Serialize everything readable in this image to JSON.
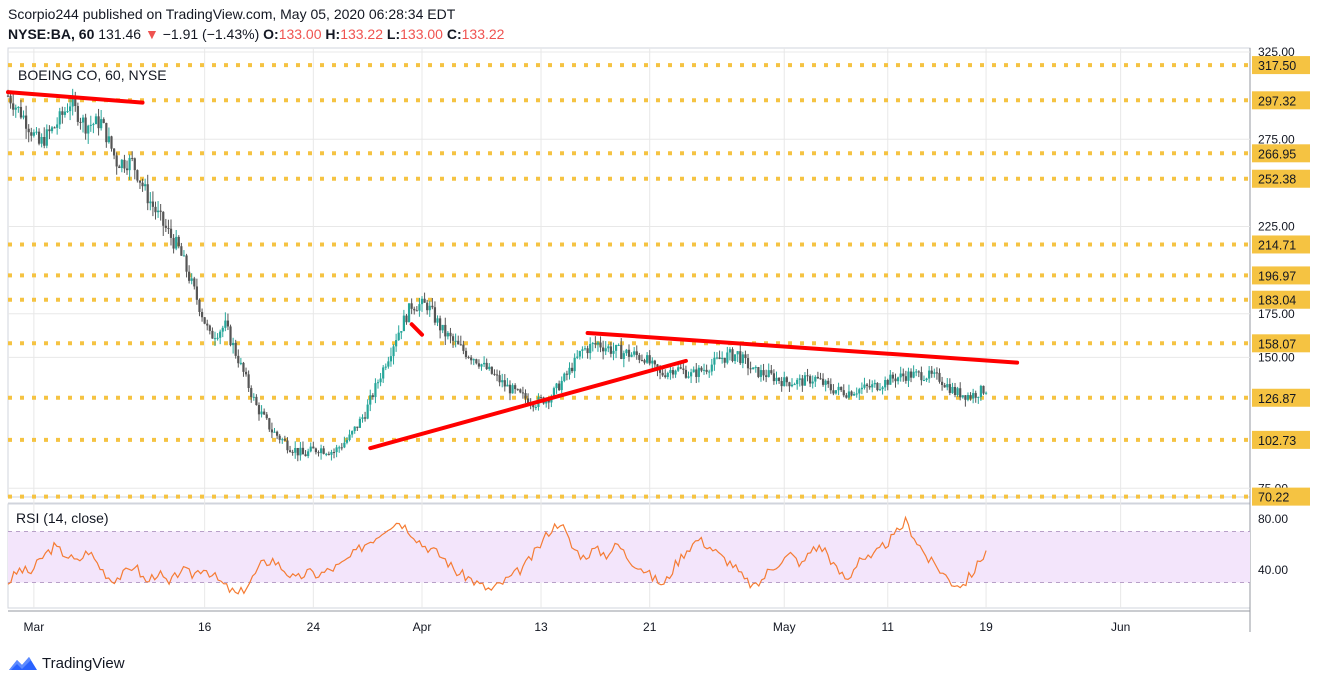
{
  "header": {
    "line1": "Scorpio244 published on TradingView.com, May 05, 2020 06:28:34 EDT",
    "symbol": "NYSE:BA, 60",
    "last": "131.46",
    "arrow": "▼",
    "change": "−1.91 (−1.43%)",
    "o_label": "O:",
    "o_val": "133.00",
    "h_label": "H:",
    "h_val": "133.22",
    "l_label": "L:",
    "l_val": "133.00",
    "c_label": "C:",
    "c_val": "133.22"
  },
  "brand": {
    "name": "TradingView",
    "icon": "tradingview-logo-icon"
  },
  "colors": {
    "level": "#f5c342",
    "trend": "#ff0000",
    "up": "#26a69a",
    "down": "#555555",
    "rsi_line": "#f57c34",
    "rsi_band": "#f3e5fb",
    "label_bg": "#f5c342",
    "grid": "#e8e8e8"
  },
  "chart_data": {
    "type": "candlestick",
    "title": "BOEING CO, 60, NYSE",
    "price_axis": {
      "ticks": [
        "325.00",
        "275.00",
        "225.00",
        "175.00",
        "150.00",
        "75.00"
      ],
      "min": 70,
      "max": 325
    },
    "levels": [
      "317.50",
      "297.32",
      "266.95",
      "252.38",
      "214.71",
      "196.97",
      "183.04",
      "158.07",
      "126.87",
      "102.73",
      "70.22"
    ],
    "x_ticks": [
      "Mar",
      "16",
      "24",
      "Apr",
      "13",
      "21",
      "May",
      "11",
      "19",
      "Jun"
    ],
    "price_path": [
      [
        0,
        300
      ],
      [
        3,
        288
      ],
      [
        6,
        272
      ],
      [
        9,
        282
      ],
      [
        12,
        296
      ],
      [
        15,
        283
      ],
      [
        18,
        285
      ],
      [
        21,
        262
      ],
      [
        24,
        262
      ],
      [
        27,
        242
      ],
      [
        30,
        226
      ],
      [
        33,
        212
      ],
      [
        36,
        188
      ],
      [
        39,
        162
      ],
      [
        42,
        168
      ],
      [
        45,
        145
      ],
      [
        48,
        122
      ],
      [
        51,
        108
      ],
      [
        54,
        100
      ],
      [
        57,
        94
      ],
      [
        60,
        98
      ],
      [
        63,
        96
      ],
      [
        66,
        104
      ],
      [
        69,
        118
      ],
      [
        72,
        140
      ],
      [
        75,
        162
      ],
      [
        78,
        180
      ],
      [
        81,
        180
      ],
      [
        84,
        165
      ],
      [
        87,
        156
      ],
      [
        90,
        150
      ],
      [
        93,
        142
      ],
      [
        96,
        134
      ],
      [
        99,
        128
      ],
      [
        102,
        124
      ],
      [
        105,
        128
      ],
      [
        108,
        140
      ],
      [
        111,
        154
      ],
      [
        114,
        158
      ],
      [
        117,
        154
      ],
      [
        120,
        152
      ],
      [
        123,
        150
      ],
      [
        126,
        140
      ],
      [
        129,
        144
      ],
      [
        132,
        140
      ],
      [
        135,
        144
      ],
      [
        138,
        150
      ],
      [
        141,
        152
      ],
      [
        144,
        142
      ],
      [
        147,
        140
      ],
      [
        150,
        136
      ],
      [
        153,
        136
      ],
      [
        156,
        138
      ],
      [
        159,
        132
      ],
      [
        162,
        130
      ],
      [
        165,
        132
      ],
      [
        168,
        134
      ],
      [
        171,
        138
      ],
      [
        174,
        140
      ],
      [
        177,
        140
      ],
      [
        180,
        138
      ],
      [
        183,
        130
      ],
      [
        186,
        128
      ],
      [
        189,
        132
      ]
    ],
    "trendlines": [
      {
        "name": "upper-left-resistance",
        "points": [
          [
            0,
            302
          ],
          [
            26,
            296
          ]
        ]
      },
      {
        "name": "small-red-segment",
        "points": [
          [
            78,
            169
          ],
          [
            80,
            163
          ]
        ]
      },
      {
        "name": "rising-support",
        "points": [
          [
            70,
            98
          ],
          [
            131,
            148
          ]
        ]
      },
      {
        "name": "descending-resistance",
        "points": [
          [
            112,
            164
          ],
          [
            195,
            147
          ]
        ]
      }
    ],
    "rsi": {
      "label": "RSI (14, close)",
      "ticks": [
        "80.00",
        "40.00"
      ],
      "upper": 70,
      "lower": 30,
      "values": [
        30,
        40,
        38,
        50,
        58,
        52,
        46,
        55,
        42,
        32,
        36,
        44,
        30,
        38,
        28,
        40,
        36,
        42,
        34,
        26,
        20,
        30,
        44,
        48,
        40,
        32,
        38,
        36,
        40,
        44,
        52,
        60,
        66,
        74,
        78,
        70,
        60,
        55,
        48,
        38,
        34,
        28,
        24,
        30,
        36,
        44,
        56,
        70,
        78,
        58,
        50,
        56,
        52,
        60,
        48,
        42,
        34,
        28,
        44,
        56,
        64,
        58,
        50,
        44,
        32,
        26,
        38,
        46,
        52,
        44,
        58,
        56,
        40,
        32,
        50,
        48,
        58,
        66,
        78,
        62,
        48,
        40,
        30,
        28,
        40,
        55
      ]
    }
  }
}
